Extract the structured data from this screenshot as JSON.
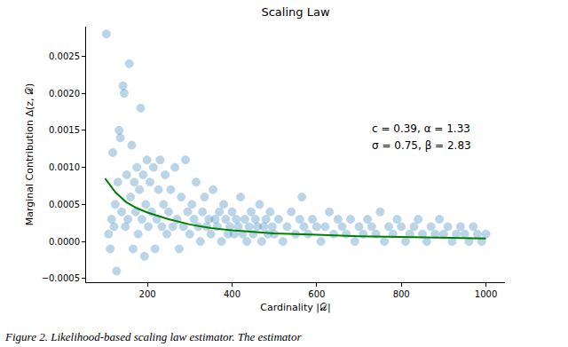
{
  "chart_data": {
    "type": "scatter",
    "title": "Scaling Law",
    "xlabel": "Cardinality |𝒟|",
    "ylabel": "Marginal Contribution Δ(z, 𝒟)",
    "annotations": [
      "c = 0.39, α = 1.33",
      "σ = 0.75, β = 2.83"
    ],
    "caption": "Figure 2. Likelihood-based scaling law estimator. The estimator",
    "xlim": [
      55,
      1045
    ],
    "ylim": [
      -0.00055,
      0.0029
    ],
    "xticks": [
      200,
      400,
      600,
      800,
      1000
    ],
    "yticks": [
      {
        "value": -0.0005,
        "label": "−0.0005"
      },
      {
        "value": 0,
        "label": "0.0000"
      },
      {
        "value": 0.0005,
        "label": "0.0005"
      },
      {
        "value": 0.001,
        "label": "0.0010"
      },
      {
        "value": 0.0015,
        "label": "0.0015"
      },
      {
        "value": 0.002,
        "label": "0.0020"
      },
      {
        "value": 0.0025,
        "label": "0.0025"
      }
    ],
    "grid": false,
    "series": [
      {
        "type": "scatter",
        "color": "#1f77b4",
        "marker": "circle",
        "x": [
          103,
          108,
          112,
          115,
          118,
          121,
          124,
          127,
          130,
          133,
          136,
          139,
          142,
          145,
          148,
          151,
          154,
          157,
          160,
          163,
          166,
          169,
          172,
          175,
          178,
          181,
          184,
          187,
          190,
          193,
          196,
          199,
          202,
          206,
          210,
          214,
          218,
          222,
          226,
          230,
          234,
          238,
          242,
          246,
          250,
          255,
          260,
          265,
          270,
          275,
          280,
          285,
          290,
          295,
          300,
          305,
          310,
          315,
          320,
          325,
          330,
          335,
          340,
          345,
          350,
          355,
          360,
          365,
          370,
          375,
          380,
          385,
          390,
          395,
          400,
          405,
          410,
          415,
          420,
          425,
          430,
          435,
          440,
          445,
          450,
          455,
          460,
          465,
          470,
          475,
          480,
          485,
          490,
          495,
          500,
          510,
          520,
          530,
          540,
          550,
          560,
          565,
          570,
          580,
          590,
          600,
          610,
          620,
          630,
          640,
          650,
          660,
          670,
          680,
          690,
          700,
          710,
          720,
          730,
          740,
          750,
          760,
          770,
          780,
          790,
          800,
          810,
          820,
          830,
          840,
          850,
          860,
          870,
          880,
          890,
          900,
          910,
          920,
          930,
          940,
          950,
          960,
          970,
          980,
          990,
          1000
        ],
        "values": [
          0.0028,
          0.0001,
          -0.0001,
          0.0003,
          0.0012,
          0.0002,
          0.0005,
          -0.0004,
          0.0008,
          0.0015,
          0.0014,
          0.0004,
          0.0021,
          0.002,
          0.0002,
          0.0009,
          0.0003,
          0.0024,
          0.0006,
          0.0013,
          -0.0001,
          0.0008,
          0.0004,
          0.001,
          0.0001,
          0.0007,
          0.0018,
          0.0003,
          0.0009,
          -0.0002,
          0.0005,
          0.0011,
          0.0002,
          0.0008,
          0.0004,
          0.001,
          -0.0001,
          0.0003,
          0.0007,
          0.0011,
          0.0002,
          0.0005,
          0.0009,
          0.0001,
          0.0004,
          0.0007,
          0.0002,
          0.001,
          0.0003,
          -0.0001,
          0.0006,
          0.0002,
          0.0011,
          0.0004,
          0.0001,
          0.0005,
          0.0003,
          0.0008,
          0.0002,
          0.0,
          0.0004,
          0.0006,
          0.0002,
          0.0003,
          0.0001,
          0.0007,
          0.0003,
          0.0002,
          0.0004,
          0.0,
          0.0005,
          0.0003,
          0.0001,
          0.0002,
          0.0004,
          0.0001,
          0.0003,
          0.0002,
          0.0006,
          0.0001,
          0.0003,
          0.0,
          0.0002,
          0.0004,
          0.0001,
          0.0003,
          0.0002,
          0.0005,
          0.0,
          0.0002,
          0.0003,
          0.0001,
          0.0004,
          0.0002,
          0.0001,
          0.0003,
          0.0,
          0.0002,
          0.0004,
          0.0001,
          0.0003,
          0.0006,
          0.0002,
          0.0001,
          0.0003,
          0.0002,
          0.0,
          0.0002,
          0.0004,
          0.0001,
          0.0003,
          0.0002,
          0.0001,
          0.0003,
          0.0,
          0.0002,
          0.0001,
          0.0003,
          0.0002,
          0.0001,
          0.0004,
          0.0,
          0.0002,
          0.0001,
          0.0003,
          0.0002,
          0.0,
          0.0001,
          0.0002,
          0.0003,
          0.0001,
          0.0,
          0.0002,
          0.0001,
          0.0003,
          0.0001,
          0.0002,
          0.0,
          0.0001,
          0.0002,
          0.0001,
          0.0,
          0.0002,
          0.0001,
          0.0,
          0.0001
        ]
      },
      {
        "type": "line",
        "color": "#008000",
        "line_style": "solid",
        "x": [
          100,
          125,
          150,
          175,
          200,
          250,
          300,
          350,
          400,
          450,
          500,
          600,
          700,
          800,
          900,
          1000
        ],
        "values": [
          0.00085,
          0.00066,
          0.00053,
          0.00045,
          0.00039,
          0.0003,
          0.00023,
          0.00018,
          0.00015,
          0.00013,
          0.00011,
          9e-05,
          7e-05,
          6e-05,
          5e-05,
          4e-05
        ]
      }
    ]
  }
}
